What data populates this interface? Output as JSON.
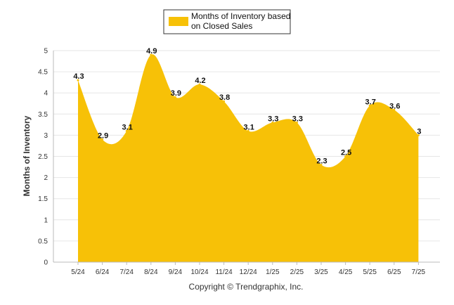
{
  "chart_data": {
    "type": "area",
    "categories": [
      "5/24",
      "6/24",
      "7/24",
      "8/24",
      "9/24",
      "10/24",
      "11/24",
      "12/24",
      "1/25",
      "2/25",
      "3/25",
      "4/25",
      "5/25",
      "6/25",
      "7/25"
    ],
    "series": [
      {
        "name": "Months of Inventory based on Closed Sales",
        "values": [
          4.3,
          2.9,
          3.1,
          4.9,
          3.9,
          4.2,
          3.8,
          3.1,
          3.3,
          3.3,
          2.3,
          2.5,
          3.7,
          3.6,
          3.0
        ],
        "labels": [
          "4.3",
          "2.9",
          "3.1",
          "4.9",
          "3.9",
          "4.2",
          "3.8",
          "3.1",
          "3.3",
          "3.3",
          "2.3",
          "2.5",
          "3.7",
          "3.6",
          "3"
        ],
        "color": "#F7C107"
      }
    ],
    "legend_lines": [
      "Months of Inventory based",
      "on Closed Sales"
    ],
    "legend_position": "top-center",
    "ylabel": "Months of Inventory",
    "ylim": [
      0,
      5
    ],
    "yticks": [
      "0",
      "0.5",
      "1",
      "1.5",
      "2",
      "2.5",
      "3",
      "3.5",
      "4",
      "4.5",
      "5"
    ],
    "grid": true,
    "footer": "Copyright © Trendgraphix, Inc."
  }
}
